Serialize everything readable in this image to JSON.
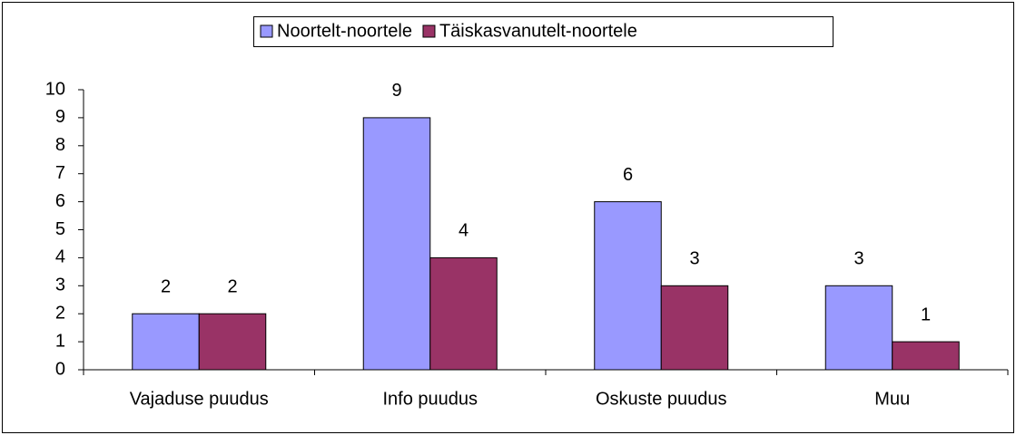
{
  "chart_data": {
    "type": "bar",
    "categories": [
      "Vajaduse puudus",
      "Info puudus",
      "Oskuste puudus",
      "Muu"
    ],
    "series": [
      {
        "name": "Noortelt-noortele",
        "color": "#9999ff",
        "values": [
          2,
          9,
          6,
          3
        ]
      },
      {
        "name": "Täiskasvanutelt-noortele",
        "color": "#993366",
        "values": [
          2,
          4,
          3,
          1
        ]
      }
    ],
    "ylim": [
      0,
      10
    ],
    "yticks": [
      0,
      1,
      2,
      3,
      4,
      5,
      6,
      7,
      8,
      9,
      10
    ],
    "grid": false,
    "legend": "top",
    "data_labels": true
  }
}
